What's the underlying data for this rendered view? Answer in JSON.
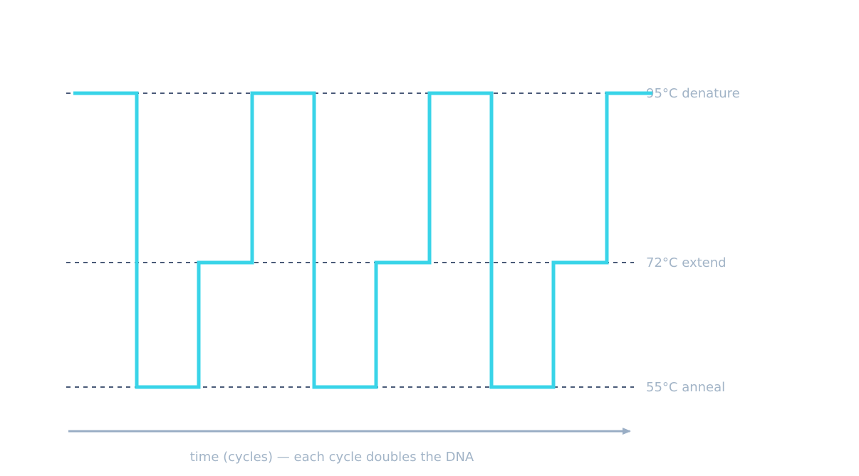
{
  "levels": [
    {
      "temp": 95,
      "label": "95°C  denature"
    },
    {
      "temp": 72,
      "label": "72°C  extend"
    },
    {
      "temp": 55,
      "label": "55°C  anneal"
    }
  ],
  "x_axis_label": "time (cycles) — each cycle doubles the DNA",
  "chart_data": {
    "type": "line",
    "title": "",
    "xlabel": "time (cycles) — each cycle doubles the DNA",
    "ylabel": "",
    "step_profile_temps": [
      95,
      55,
      72,
      95,
      55,
      72,
      95,
      55,
      72,
      95
    ],
    "cycles": 3
  },
  "colors": {
    "trace": "#39d4e8",
    "reference_line": "#4a5a78",
    "axis": "#9aaec5",
    "label": "#a2b4c7"
  }
}
